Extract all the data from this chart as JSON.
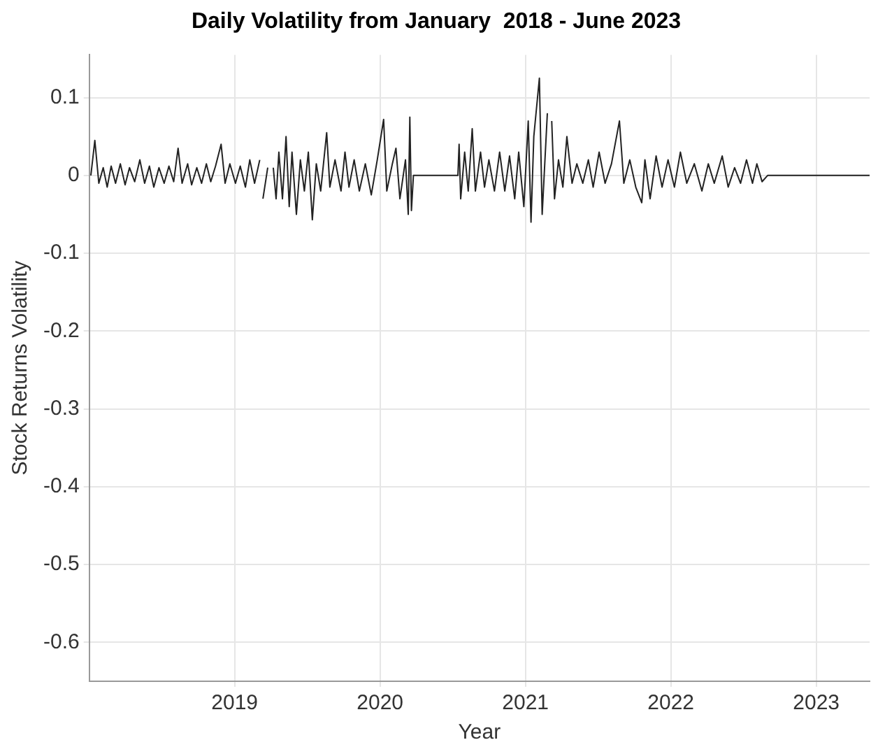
{
  "chart_data": {
    "type": "line",
    "title": "Daily Volatility from January  2018 - June 2023",
    "xlabel": "Year",
    "ylabel": "Stock Returns Volatility",
    "x": [
      "2018-01-05",
      "2018-01-15",
      "2018-01-25",
      "2018-02-05",
      "2018-02-15",
      "2018-02-25",
      "2018-03-08",
      "2018-03-20",
      "2018-04-01",
      "2018-04-12",
      "2018-04-25",
      "2018-05-08",
      "2018-05-20",
      "2018-06-01",
      "2018-06-12",
      "2018-06-25",
      "2018-07-08",
      "2018-07-20",
      "2018-08-01",
      "2018-08-12",
      "2018-08-22",
      "2018-09-05",
      "2018-09-15",
      "2018-09-28",
      "2018-10-10",
      "2018-10-22",
      "2018-11-02",
      "2018-11-14",
      "2018-11-28",
      "2018-12-08",
      "2018-12-20",
      "2019-01-03",
      "2019-01-15",
      "2019-01-28",
      "2019-02-08",
      "2019-02-20",
      "2019-03-05",
      "2019-03-10",
      "2019-03-13",
      "2019-03-25",
      "2019-04-05",
      "2019-04-08",
      "2019-04-15",
      "2019-04-22",
      "2019-05-01",
      "2019-05-10",
      "2019-05-18",
      "2019-05-25",
      "2019-06-05",
      "2019-06-15",
      "2019-06-25",
      "2019-07-05",
      "2019-07-15",
      "2019-07-25",
      "2019-08-05",
      "2019-08-20",
      "2019-08-28",
      "2019-09-10",
      "2019-09-25",
      "2019-10-05",
      "2019-10-15",
      "2019-10-28",
      "2019-11-10",
      "2019-11-25",
      "2019-12-10",
      "2019-12-25",
      "2020-01-10",
      "2020-01-18",
      "2020-02-01",
      "2020-02-10",
      "2020-02-20",
      "2020-03-05",
      "2020-03-12",
      "2020-03-16",
      "2020-03-20",
      "2020-03-25",
      "2020-07-15",
      "2020-07-18",
      "2020-07-22",
      "2020-08-01",
      "2020-08-10",
      "2020-08-20",
      "2020-08-28",
      "2020-09-10",
      "2020-09-20",
      "2020-10-01",
      "2020-10-15",
      "2020-10-28",
      "2020-11-10",
      "2020-11-22",
      "2020-12-05",
      "2020-12-15",
      "2020-12-28",
      "2021-01-08",
      "2021-01-15",
      "2021-01-22",
      "2021-02-05",
      "2021-02-12",
      "2021-02-25",
      "2021-03-05",
      "2021-03-08",
      "2021-03-15",
      "2021-03-25",
      "2021-04-05",
      "2021-04-15",
      "2021-04-28",
      "2021-05-10",
      "2021-05-25",
      "2021-06-08",
      "2021-06-20",
      "2021-07-05",
      "2021-07-20",
      "2021-08-05",
      "2021-08-25",
      "2021-09-05",
      "2021-09-20",
      "2021-10-05",
      "2021-10-20",
      "2021-10-28",
      "2021-11-10",
      "2021-11-25",
      "2021-12-10",
      "2021-12-25",
      "2022-01-10",
      "2022-01-25",
      "2022-02-10",
      "2022-03-01",
      "2022-03-20",
      "2022-04-05",
      "2022-04-20",
      "2022-05-10",
      "2022-05-25",
      "2022-06-10",
      "2022-06-25",
      "2022-07-10",
      "2022-07-25",
      "2022-08-05",
      "2022-08-18",
      "2022-09-01",
      "2023-05-15"
    ],
    "series": [
      {
        "color": "#222222",
        "values": [
          0,
          0.045,
          -0.01,
          0.01,
          -0.015,
          0.012,
          -0.01,
          0.015,
          -0.012,
          0.01,
          -0.008,
          0.02,
          -0.01,
          0.012,
          -0.015,
          0.01,
          -0.01,
          0.012,
          -0.008,
          0.035,
          -0.01,
          0.015,
          -0.012,
          0.01,
          -0.01,
          0.015,
          -0.008,
          0.012,
          0.04,
          -0.01,
          0.015,
          -0.01,
          0.012,
          -0.015,
          0.02,
          -0.01,
          0.02,
          null,
          -0.03,
          0.01,
          null,
          0.01,
          -0.03,
          0.03,
          -0.03,
          0.05,
          -0.04,
          0.03,
          -0.05,
          0.02,
          -0.02,
          0.03,
          -0.057,
          0.015,
          -0.02,
          0.055,
          -0.015,
          0.02,
          -0.02,
          0.03,
          -0.015,
          0.02,
          -0.02,
          0.015,
          -0.025,
          0.02,
          0.072,
          -0.02,
          0.015,
          0.035,
          -0.03,
          0.02,
          -0.05,
          0.075,
          -0.045,
          0,
          0,
          0.04,
          -0.03,
          0.03,
          -0.02,
          0.06,
          -0.02,
          0.03,
          -0.015,
          0.02,
          -0.02,
          0.03,
          -0.02,
          0.025,
          -0.03,
          0.03,
          -0.04,
          0.07,
          -0.06,
          0.05,
          0.125,
          -0.05,
          0.08,
          null,
          0.07,
          -0.03,
          0.02,
          -0.015,
          0.05,
          -0.01,
          0.015,
          -0.01,
          0.02,
          -0.015,
          0.03,
          -0.01,
          0.015,
          0.07,
          -0.01,
          0.02,
          -0.015,
          -0.035,
          0.02,
          -0.03,
          0.025,
          -0.015,
          0.02,
          -0.015,
          0.03,
          -0.01,
          0.015,
          -0.02,
          0.015,
          -0.01,
          0.025,
          -0.015,
          0.01,
          -0.01,
          0.02,
          -0.01,
          0.015,
          -0.008,
          0,
          0
        ]
      }
    ],
    "xlim": [
      "2018-01-01",
      "2023-05-15"
    ],
    "xticks": [
      "2019",
      "2020",
      "2021",
      "2022",
      "2023"
    ],
    "ylim": [
      -0.65,
      0.155
    ],
    "yticks": [
      -0.6,
      -0.5,
      -0.4,
      -0.3,
      -0.2,
      -0.1,
      0,
      0.1
    ],
    "grid": true,
    "legend": false,
    "marker": "none",
    "line_style": "solid"
  }
}
